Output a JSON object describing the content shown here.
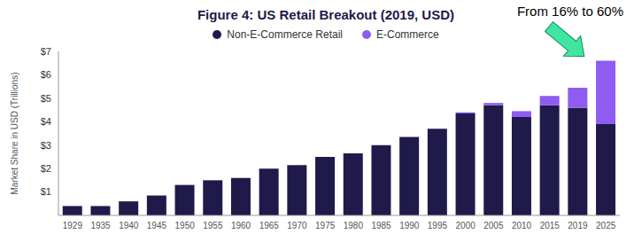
{
  "chart_data": {
    "type": "bar",
    "title": "Figure 4: US Retail Breakout (2019, USD)",
    "y_label": "Market Share in USD (Trillions)",
    "annotation": "From 16% to 60%",
    "categories": [
      "1929",
      "1935",
      "1940",
      "1945",
      "1950",
      "1955",
      "1960",
      "1965",
      "1970",
      "1975",
      "1980",
      "1985",
      "1990",
      "1995",
      "2000",
      "2005",
      "2010",
      "2015",
      "2019",
      "2025"
    ],
    "series": [
      {
        "name": "Non-E-Commerce Retail",
        "color": "#1f1a4a",
        "values": [
          0.4,
          0.4,
          0.6,
          0.85,
          1.3,
          1.5,
          1.6,
          2.0,
          2.15,
          2.5,
          2.65,
          3.0,
          3.35,
          3.7,
          4.35,
          4.7,
          4.2,
          4.7,
          4.6,
          3.9
        ]
      },
      {
        "name": "E-Commerce",
        "color": "#8f5cf2",
        "values": [
          0,
          0,
          0,
          0,
          0,
          0,
          0,
          0,
          0,
          0,
          0,
          0,
          0,
          0,
          0.05,
          0.1,
          0.25,
          0.4,
          0.85,
          2.7
        ]
      }
    ],
    "stacked": true,
    "grid": false,
    "ylim": [
      0,
      7
    ],
    "yticks": [
      {
        "value": 1,
        "label": "$1"
      },
      {
        "value": 2,
        "label": "$2"
      },
      {
        "value": 3,
        "label": "$3"
      },
      {
        "value": 4,
        "label": "$4"
      },
      {
        "value": 5,
        "label": "$5"
      },
      {
        "value": 6,
        "label": "$6"
      },
      {
        "value": 7,
        "label": "$7"
      }
    ]
  }
}
